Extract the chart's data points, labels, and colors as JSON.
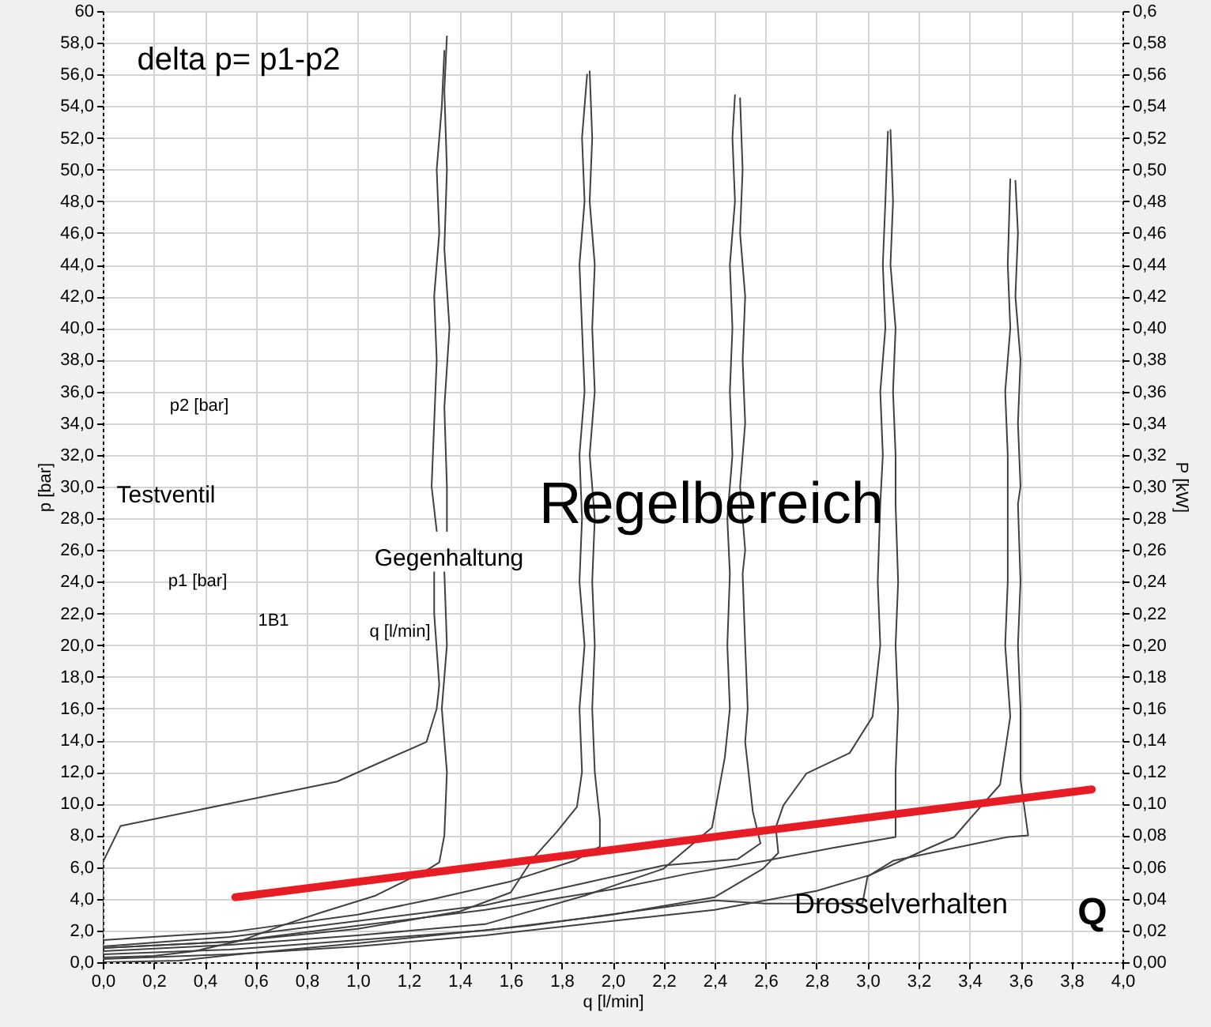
{
  "chart_data": {
    "type": "line",
    "xlabel": "q  [l/min]",
    "ylabel": "p  [bar]",
    "y2label": "P [kW]",
    "xlim": [
      0,
      4
    ],
    "ylim": [
      0,
      60
    ],
    "y2lim": [
      0,
      0.6
    ],
    "xticks": [
      {
        "value": 0,
        "label": "0,0"
      },
      {
        "value": 0.2,
        "label": "0,2"
      },
      {
        "value": 0.4,
        "label": "0,4"
      },
      {
        "value": 0.6,
        "label": "0,6"
      },
      {
        "value": 0.8,
        "label": "0,8"
      },
      {
        "value": 1,
        "label": "1,0"
      },
      {
        "value": 1.2,
        "label": "1,2"
      },
      {
        "value": 1.4,
        "label": "1,4"
      },
      {
        "value": 1.6,
        "label": "1,6"
      },
      {
        "value": 1.8,
        "label": "1,8"
      },
      {
        "value": 2,
        "label": "2,0"
      },
      {
        "value": 2.2,
        "label": "2,2"
      },
      {
        "value": 2.4,
        "label": "2,4"
      },
      {
        "value": 2.6,
        "label": "2,6"
      },
      {
        "value": 2.8,
        "label": "2,8"
      },
      {
        "value": 3,
        "label": "3,0"
      },
      {
        "value": 3.2,
        "label": "3,2"
      },
      {
        "value": 3.4,
        "label": "3,4"
      },
      {
        "value": 3.6,
        "label": "3,6"
      },
      {
        "value": 3.8,
        "label": "3,8"
      },
      {
        "value": 4,
        "label": "4,0"
      }
    ],
    "yticks": [
      {
        "value": 0,
        "label": "0,0"
      },
      {
        "value": 2,
        "label": "2,0"
      },
      {
        "value": 4,
        "label": "4,0"
      },
      {
        "value": 6,
        "label": "6,0"
      },
      {
        "value": 8,
        "label": "8,0"
      },
      {
        "value": 10,
        "label": "10,0"
      },
      {
        "value": 12,
        "label": "12,0"
      },
      {
        "value": 14,
        "label": "14,0"
      },
      {
        "value": 16,
        "label": "16,0"
      },
      {
        "value": 18,
        "label": "18,0"
      },
      {
        "value": 20,
        "label": "20,0"
      },
      {
        "value": 22,
        "label": "22,0"
      },
      {
        "value": 24,
        "label": "24,0"
      },
      {
        "value": 26,
        "label": "26,0"
      },
      {
        "value": 28,
        "label": "28,0"
      },
      {
        "value": 30,
        "label": "30,0"
      },
      {
        "value": 32,
        "label": "32,0"
      },
      {
        "value": 34,
        "label": "34,0"
      },
      {
        "value": 36,
        "label": "36,0"
      },
      {
        "value": 38,
        "label": "38,0"
      },
      {
        "value": 40,
        "label": "40,0"
      },
      {
        "value": 42,
        "label": "42,0"
      },
      {
        "value": 44,
        "label": "44,0"
      },
      {
        "value": 46,
        "label": "46,0"
      },
      {
        "value": 48,
        "label": "48,0"
      },
      {
        "value": 50,
        "label": "50,0"
      },
      {
        "value": 52,
        "label": "52,0"
      },
      {
        "value": 54,
        "label": "54,0"
      },
      {
        "value": 56,
        "label": "56,0"
      },
      {
        "value": 58,
        "label": "58,0"
      },
      60
    ],
    "y2ticks": [
      {
        "value": 0,
        "label": "0,00"
      },
      {
        "value": 0.02,
        "label": "0,02"
      },
      {
        "value": 0.04,
        "label": "0,04"
      },
      {
        "value": 0.06,
        "label": "0,06"
      },
      {
        "value": 0.08,
        "label": "0,08"
      },
      {
        "value": 0.1,
        "label": "0,10"
      },
      {
        "value": 0.12,
        "label": "0,12"
      },
      {
        "value": 0.14,
        "label": "0,14"
      },
      {
        "value": 0.16,
        "label": "0,16"
      },
      {
        "value": 0.18,
        "label": "0,18"
      },
      {
        "value": 0.2,
        "label": "0,20"
      },
      {
        "value": 0.22,
        "label": "0,22"
      },
      {
        "value": 0.24,
        "label": "0,24"
      },
      {
        "value": 0.26,
        "label": "0,26"
      },
      {
        "value": 0.28,
        "label": "0,28"
      },
      {
        "value": 0.3,
        "label": "0,30"
      },
      {
        "value": 0.32,
        "label": "0,32"
      },
      {
        "value": 0.34,
        "label": "0,34"
      },
      {
        "value": 0.36,
        "label": "0,36"
      },
      {
        "value": 0.38,
        "label": "0,38"
      },
      {
        "value": 0.4,
        "label": "0,40"
      },
      {
        "value": 0.42,
        "label": "0,42"
      },
      {
        "value": 0.44,
        "label": "0,44"
      },
      {
        "value": 0.46,
        "label": "0,46"
      },
      {
        "value": 0.48,
        "label": "0,48"
      },
      {
        "value": 0.5,
        "label": "0,50"
      },
      {
        "value": 0.52,
        "label": "0,52"
      },
      {
        "value": 0.54,
        "label": "0,54"
      },
      {
        "value": 0.56,
        "label": "0,56"
      },
      {
        "value": 0.58,
        "label": "0,58"
      },
      {
        "value": 0.6,
        "label": "0,6"
      }
    ],
    "grid": true,
    "series": [
      {
        "color": "#404040",
        "x": [
          0,
          0,
          0.07,
          0.92,
          1.27,
          1.31,
          1.32,
          1.3,
          1.3,
          null,
          1.31,
          1.29,
          1.3,
          1.31,
          1.3,
          1.32,
          1.31,
          1.33,
          1.34
        ],
        "values": [
          0,
          6.3,
          8.6,
          11.4,
          13.9,
          16.0,
          17.5,
          22,
          24.6,
          null,
          27.2,
          30,
          34,
          38,
          42,
          46,
          50,
          54,
          57.5
        ]
      },
      {
        "color": "#404040",
        "x": [
          0,
          0.2,
          0.36,
          0.55,
          0.7,
          0.85,
          1.07,
          1.27,
          1.32,
          1.34,
          1.35,
          1.33,
          1.35,
          1.34,
          null,
          1.35,
          1.35,
          1.34,
          1.36,
          1.34,
          1.35,
          1.34,
          1.35
        ],
        "values": [
          0.3,
          0.4,
          0.7,
          1.4,
          2.3,
          3.1,
          4.2,
          5.8,
          6.3,
          8,
          12,
          16,
          20,
          24.6,
          null,
          27.2,
          30,
          35,
          40,
          45,
          50,
          55,
          58.4
        ]
      },
      {
        "color": "#404040",
        "x": [
          0,
          0.5,
          1.0,
          1.4,
          1.6,
          1.69,
          1.78,
          1.86,
          1.88,
          1.87,
          1.89,
          1.87,
          1.88,
          1.87,
          1.89,
          1.88,
          1.87,
          1.89,
          1.88,
          1.9
        ],
        "values": [
          0.9,
          1.3,
          2.1,
          3.2,
          4.4,
          6.6,
          8.2,
          9.8,
          12,
          16,
          20,
          24,
          28,
          32,
          36,
          40,
          44,
          48,
          52,
          56.0
        ]
      },
      {
        "color": "#404040",
        "x": [
          1.91,
          1.92,
          1.91,
          1.93,
          1.92,
          1.93,
          1.91,
          1.93,
          1.92,
          1.93,
          1.92,
          1.93,
          1.95,
          1.95,
          1.85,
          1.6,
          1.3,
          1.0,
          0.5,
          0
        ],
        "values": [
          56.2,
          52,
          48,
          44,
          40,
          36,
          32,
          28,
          24,
          20,
          16,
          12,
          9.0,
          7.3,
          6.4,
          5.1,
          4.0,
          3.0,
          1.9,
          1.4
        ]
      },
      {
        "color": "#404040",
        "x": [
          0,
          0.5,
          1.0,
          1.5,
          1.89,
          2.2,
          2.39,
          2.44,
          2.46,
          2.45,
          2.46,
          2.45,
          2.47,
          2.46,
          2.47,
          2.46,
          2.48,
          2.47,
          2.48
        ],
        "values": [
          0.7,
          1.1,
          1.7,
          2.4,
          4.2,
          5.9,
          8.5,
          12.9,
          16,
          20,
          24.5,
          28,
          32,
          36,
          40,
          44,
          48,
          52,
          54.7
        ]
      },
      {
        "color": "#404040",
        "x": [
          2.5,
          2.51,
          2.5,
          2.52,
          2.51,
          2.52,
          2.5,
          2.52,
          2.51,
          2.52,
          2.53,
          2.52,
          2.55,
          2.58,
          2.49,
          2.2,
          1.89,
          1.5,
          1.0,
          0.5,
          0
        ],
        "values": [
          54.5,
          50,
          46,
          42,
          38,
          34,
          30,
          26,
          24.5,
          20,
          16,
          13.9,
          9.5,
          7.5,
          6.5,
          6.1,
          5.0,
          3.6,
          2.6,
          1.6,
          1.0
        ]
      },
      {
        "color": "#404040",
        "x": [
          0,
          0.5,
          1.0,
          1.5,
          2.0,
          2.4,
          2.59,
          2.65,
          2.64,
          2.67,
          2.76,
          2.93,
          3.02,
          3.05,
          3.04,
          3.05,
          3.06,
          3.05,
          3.07,
          3.06,
          3.07,
          3.08
        ],
        "values": [
          0.5,
          0.8,
          1.4,
          2.0,
          3.0,
          4.1,
          5.9,
          6.9,
          8.5,
          9.9,
          11.9,
          13.2,
          15.5,
          20,
          24,
          28.9,
          32,
          36,
          40,
          44,
          48,
          52.4
        ]
      },
      {
        "color": "#404040",
        "x": [
          3.09,
          3.1,
          3.09,
          3.11,
          3.1,
          3.11,
          3.11,
          3.12,
          3.11,
          3.12,
          3.11,
          3.11,
          2.86,
          2.6,
          2.3,
          2.0,
          1.5,
          1.0,
          0.5,
          0
        ],
        "values": [
          52.5,
          48,
          44,
          40,
          36,
          32,
          28.9,
          24,
          20,
          16,
          12,
          7.9,
          7.2,
          6.4,
          5.6,
          4.6,
          3.3,
          2.3,
          1.3,
          0.9
        ]
      },
      {
        "color": "#404040",
        "x": [
          0,
          0.5,
          1.0,
          1.5,
          2.0,
          2.4,
          2.8,
          3.01,
          3.24,
          3.34,
          3.41,
          3.52,
          3.56,
          3.54,
          3.55,
          3.55,
          3.55,
          3.54,
          3.56,
          3.55,
          3.56
        ],
        "values": [
          0.2,
          0.5,
          1.0,
          1.7,
          2.6,
          3.3,
          4.5,
          5.5,
          7.2,
          7.9,
          9.2,
          11.2,
          15.5,
          20,
          24,
          28.9,
          32,
          36,
          40,
          44,
          49.4
        ]
      },
      {
        "color": "#404040",
        "x": [
          3.58,
          3.59,
          3.58,
          3.6,
          3.59,
          3.6,
          3.59,
          3.6,
          3.59,
          3.6,
          3.6,
          3.63,
          3.55,
          3.34,
          3.1,
          3.0,
          2.98,
          2.6,
          2.4,
          1.67,
          1.0,
          0.53,
          0.3,
          0
        ],
        "values": [
          49.3,
          46,
          42,
          38,
          34,
          30,
          28.9,
          24,
          20,
          16,
          11.5,
          8.0,
          7.9,
          7.2,
          6.4,
          5.4,
          3.7,
          3.7,
          3.9,
          2.3,
          1.2,
          0.5,
          0.1,
          0
        ]
      },
      {
        "color": "#e81c24",
        "x": [
          0.52,
          3.88
        ],
        "values": [
          4.1,
          10.9
        ]
      }
    ],
    "annotations": [
      "delta p= p1-p2",
      "Regelbereich",
      "Drosselverhalten",
      "Q",
      "p2  [bar]",
      "Testventil",
      "Gegenhaltung",
      "p1  [bar]",
      "1B1",
      "q  [l/min]"
    ]
  }
}
